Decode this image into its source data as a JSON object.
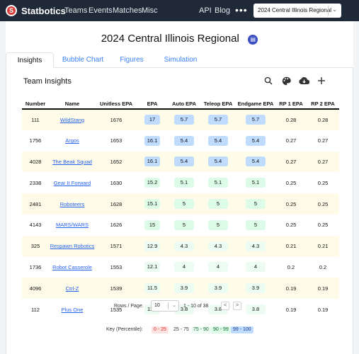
{
  "nav": {
    "brand": "Statbotics",
    "links": [
      "Teams",
      "Events",
      "Matches",
      "Misc"
    ],
    "right_links": [
      "API",
      "Blog"
    ],
    "more": "•••",
    "event_selected": "2024 Central Illinois Regional"
  },
  "page": {
    "title": "2024 Central Illinois Regional",
    "tabs": [
      "Insights",
      "Bubble Chart",
      "Figures",
      "Simulation"
    ],
    "active_tab": "Insights"
  },
  "insights": {
    "title": "Team Insights",
    "tools": [
      "search-icon",
      "palette-icon",
      "download-icon",
      "add-icon"
    ],
    "columns": [
      "Number",
      "Name",
      "Unitless EPA",
      "EPA",
      "Auto EPA",
      "Teleop EPA",
      "Endgame EPA",
      "RP 1 EPA",
      "RP 2 EPA"
    ],
    "rows": [
      {
        "number": "111",
        "name": "WildStang",
        "unitless": "1676",
        "epa": "17",
        "auto": "5.7",
        "teleop": "5.7",
        "endgame": "5.7",
        "rp1": "0.28",
        "rp2": "0.28",
        "tier": "b"
      },
      {
        "number": "1756",
        "name": "Argos",
        "unitless": "1653",
        "epa": "16.1",
        "auto": "5.4",
        "teleop": "5.4",
        "endgame": "5.4",
        "rp1": "0.27",
        "rp2": "0.27",
        "tier": "b"
      },
      {
        "number": "4028",
        "name": "The Beak Squad",
        "unitless": "1652",
        "epa": "16.1",
        "auto": "5.4",
        "teleop": "5.4",
        "endgame": "5.4",
        "rp1": "0.27",
        "rp2": "0.27",
        "tier": "b"
      },
      {
        "number": "2338",
        "name": "Gear It Forward",
        "unitless": "1630",
        "epa": "15.2",
        "auto": "5.1",
        "teleop": "5.1",
        "endgame": "5.1",
        "rp1": "0.25",
        "rp2": "0.25",
        "tier": "g"
      },
      {
        "number": "2481",
        "name": "Roboteers",
        "unitless": "1628",
        "epa": "15.1",
        "auto": "5",
        "teleop": "5",
        "endgame": "5",
        "rp1": "0.25",
        "rp2": "0.25",
        "tier": "g"
      },
      {
        "number": "4143",
        "name": "MARS/WARS",
        "unitless": "1626",
        "epa": "15",
        "auto": "5",
        "teleop": "5",
        "endgame": "5",
        "rp1": "0.25",
        "rp2": "0.25",
        "tier": "g"
      },
      {
        "number": "325",
        "name": "Respawn Robotics",
        "unitless": "1571",
        "epa": "12.9",
        "auto": "4.3",
        "teleop": "4.3",
        "endgame": "4.3",
        "rp1": "0.21",
        "rp2": "0.21",
        "tier": "lg"
      },
      {
        "number": "1736",
        "name": "Robot Casserole",
        "unitless": "1553",
        "epa": "12.1",
        "auto": "4",
        "teleop": "4",
        "endgame": "4",
        "rp1": "0.2",
        "rp2": "0.2",
        "tier": "lg"
      },
      {
        "number": "4096",
        "name": "Ctrl-Z",
        "unitless": "1539",
        "epa": "11.5",
        "auto": "3.9",
        "teleop": "3.9",
        "endgame": "3.9",
        "rp1": "0.19",
        "rp2": "0.19",
        "tier": "lg"
      },
      {
        "number": "112",
        "name": "Plus One",
        "unitless": "1535",
        "epa": "11.4",
        "auto": "3.8",
        "teleop": "3.8",
        "endgame": "3.8",
        "rp1": "0.19",
        "rp2": "0.19",
        "tier": "lg"
      }
    ]
  },
  "pagination": {
    "rows_label": "Rows / Page:",
    "rows_value": "10",
    "range": "1 - 10 of 38",
    "prev": "<",
    "next": ">"
  },
  "key": {
    "label": "Key (Percentile):",
    "chips": [
      {
        "text": "0 - 25",
        "bg": "#fee2e2",
        "color": "#dc2626"
      },
      {
        "text": "25 - 75",
        "bg": "#ffffff",
        "color": "#333333"
      },
      {
        "text": "75 - 90",
        "bg": "#edfcf2",
        "color": "#166534"
      },
      {
        "text": "90 - 99",
        "bg": "#dcfce7",
        "color": "#166534"
      },
      {
        "text": "99 - 100",
        "bg": "#bfdbfe",
        "color": "#1e3a8a"
      }
    ]
  }
}
